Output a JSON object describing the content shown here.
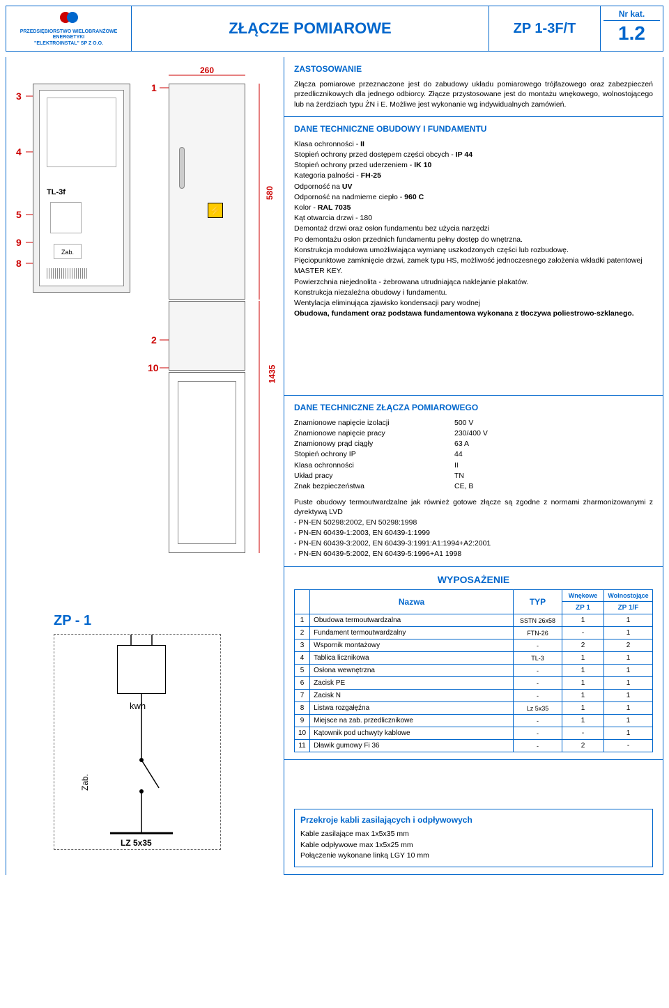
{
  "header": {
    "company_line1": "PRZEDSIĘBIORSTWO WIELOBRANŻOWE",
    "company_line2": "ENERGETYKI",
    "company_line3": "\"ELEKTROINSTAL\" SP Z O.O.",
    "title": "ZŁĄCZE POMIAROWE",
    "model": "ZP 1-3F/T",
    "nrkat_label": "Nr kat.",
    "nrkat_value": "1.2"
  },
  "drawing": {
    "callouts": [
      "3",
      "4",
      "5",
      "9",
      "8",
      "1",
      "2",
      "10"
    ],
    "dims": {
      "width": "260",
      "height_top": "580",
      "height_total": "1435"
    },
    "front_label1": "TL-3f",
    "front_label2": "Zab."
  },
  "zastosowanie": {
    "title": "ZASTOSOWANIE",
    "text": "Złącza pomiarowe przeznaczone jest do zabudowy układu pomiarowego trójfazowego oraz zabezpieczeń przedlicznikowych dla jednego odbiorcy. Złącze przystosowane jest do montażu wnękowego, wolnostojącego lub na żerdziach typu ŻN i E. Możliwe jest wykonanie wg indywidualnych zamówień."
  },
  "dane_obudowy": {
    "title": "DANE TECHNICZNE OBUDOWY I FUNDAMENTU",
    "lines": [
      "Klasa ochronności - <b>II</b>",
      "Stopień ochrony przed dostępem części obcych - <b>IP 44</b>",
      "Stopień ochrony przed uderzeniem - <b>IK 10</b>",
      "Kategoria palności - <b>FH-25</b>",
      "Odporność na <b>UV</b>",
      "Odporność na nadmierne ciepło - <b>960 C</b>",
      "Kolor - <b>RAL 7035</b>",
      "Kąt otwarcia drzwi - 180",
      "Demontaż drzwi oraz osłon fundamentu bez użycia narzędzi",
      "Po demontażu osłon przednich fundamentu pełny dostęp do wnętrzna.",
      "Konstrukcja modułowa umożliwiająca wymianę uszkodzonych części lub rozbudowę.",
      "Pięciopunktowe zamknięcie drzwi, zamek typu HS, możliwość jednoczesnego założenia wkładki patentowej MASTER KEY.",
      "Powierzchnia niejednolita - żebrowana utrudniająca naklejanie plakatów.",
      "Konstrukcja niezależna obudowy i fundamentu.",
      "Wentylacja eliminująca zjawisko kondensacji pary wodnej",
      "<b>Obudowa, fundament oraz podstawa fundamentowa wykonana z tłoczywa poliestrowo-szklanego.</b>"
    ]
  },
  "dane_zlacza": {
    "title": "DANE TECHNICZNE ZŁĄCZA POMIAROWEGO",
    "params": [
      {
        "label": "Znamionowe napięcie izolacji",
        "value": "500 V"
      },
      {
        "label": "Znamionowe napięcie pracy",
        "value": "230/400 V"
      },
      {
        "label": "Znamionowy prąd ciągły",
        "value": "63 A"
      },
      {
        "label": "Stopień ochrony IP",
        "value": "44"
      },
      {
        "label": "Klasa ochronności",
        "value": "II"
      },
      {
        "label": "Układ pracy",
        "value": "TN"
      },
      {
        "label": "Znak bezpieczeństwa",
        "value": "CE, B"
      }
    ],
    "norms_intro": "Puste obudowy termoutwardzalne jak również gotowe złącze są zgodne z normami zharmonizowanymi z dyrektywą LVD",
    "norms": [
      "- PN-EN 50298:2002, EN 50298:1998",
      "- PN-EN 60439-1:2003, EN 60439-1:1999",
      "- PN-EN 60439-3:2002, EN 60439-3:1991:A1:1994+A2:2001",
      "- PN-EN 60439-5:2002, EN 60439-5:1996+A1 1998"
    ]
  },
  "zp1": {
    "title": "ZP - 1",
    "kwh": "kwh",
    "zab": "Zab.",
    "lz": "LZ 5x35"
  },
  "wyposazenie": {
    "title": "WYPOSAŻENIE",
    "headers": {
      "nazwa": "Nazwa",
      "typ": "TYP",
      "wnekowe": "Wnękowe",
      "wolno": "Wolnostojące",
      "zp1": "ZP 1",
      "zp1f": "ZP 1/F"
    },
    "rows": [
      {
        "n": "1",
        "name": "Obudowa termoutwardzalna",
        "typ": "SSTN 26x58",
        "c1": "1",
        "c2": "1"
      },
      {
        "n": "2",
        "name": "Fundament termoutwardzalny",
        "typ": "FTN-26",
        "c1": "-",
        "c2": "1"
      },
      {
        "n": "3",
        "name": "Wspornik montażowy",
        "typ": "-",
        "c1": "2",
        "c2": "2"
      },
      {
        "n": "4",
        "name": "Tablica licznikowa",
        "typ": "TL-3",
        "c1": "1",
        "c2": "1"
      },
      {
        "n": "5",
        "name": "Osłona wewnętrzna",
        "typ": "-",
        "c1": "1",
        "c2": "1"
      },
      {
        "n": "6",
        "name": "Zacisk PE",
        "typ": "-",
        "c1": "1",
        "c2": "1"
      },
      {
        "n": "7",
        "name": "Zacisk N",
        "typ": "-",
        "c1": "1",
        "c2": "1"
      },
      {
        "n": "8",
        "name": "Listwa rozgałęźna",
        "typ": "Lz 5x35",
        "c1": "1",
        "c2": "1"
      },
      {
        "n": "9",
        "name": "Miejsce na zab. przedlicznikowe",
        "typ": "-",
        "c1": "1",
        "c2": "1"
      },
      {
        "n": "10",
        "name": "Kątownik pod uchwyty kablowe",
        "typ": "-",
        "c1": "-",
        "c2": "1"
      },
      {
        "n": "11",
        "name": "Dławik gumowy Fi 36",
        "typ": "-",
        "c1": "2",
        "c2": "-"
      }
    ]
  },
  "kable": {
    "title": "Przekroje kabli zasilających i odpływowych",
    "lines": [
      "Kable zasilające max 1x5x35 mm",
      "Kable odpływowe max 1x5x25 mm",
      "Połączenie wykonane linką LGY 10 mm"
    ]
  }
}
